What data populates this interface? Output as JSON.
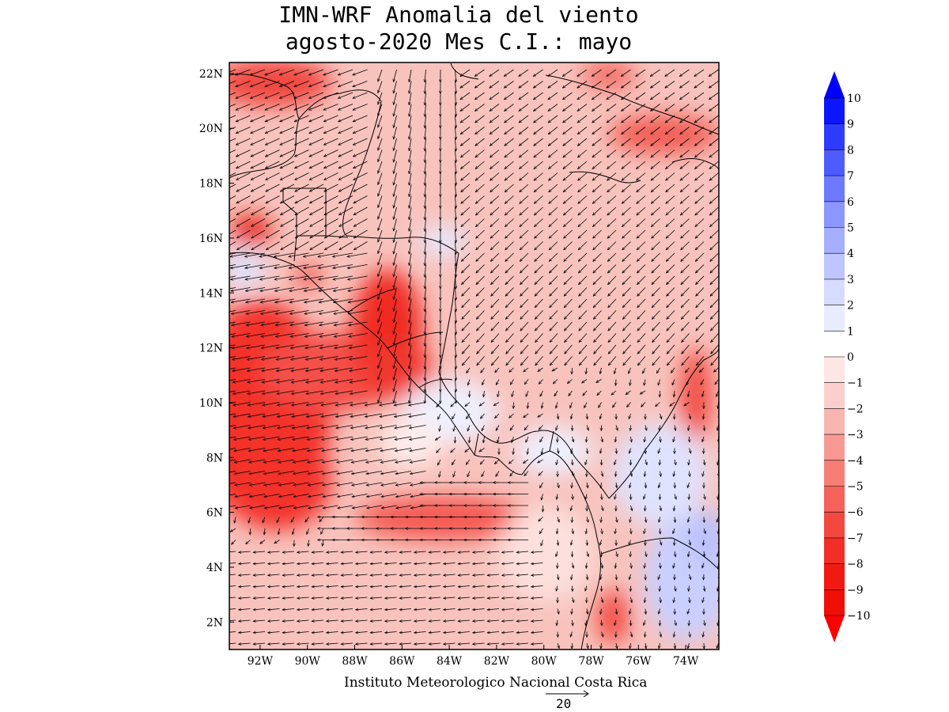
{
  "title": {
    "line1": "IMN-WRF Anomalia del viento",
    "line2": "agosto-2020 Mes C.I.: mayo"
  },
  "map": {
    "lat_labels": [
      "22N",
      "20N",
      "18N",
      "16N",
      "14N",
      "12N",
      "10N",
      "8N",
      "6N",
      "4N",
      "2N"
    ],
    "lat_values": [
      22,
      20,
      18,
      16,
      14,
      12,
      10,
      8,
      6,
      4,
      2
    ],
    "lon_labels": [
      "92W",
      "90W",
      "88W",
      "86W",
      "84W",
      "82W",
      "80W",
      "78W",
      "76W",
      "74W"
    ],
    "lon_values": [
      -92,
      -90,
      -88,
      -86,
      -84,
      -82,
      -80,
      -78,
      -76,
      -74
    ],
    "lon_range": [
      -93.3,
      -72.6
    ],
    "lat_range": [
      1.0,
      22.4
    ],
    "land_color": "#f4d4d4",
    "sea_color": "#f7c9c4"
  },
  "colorbar": {
    "labels": [
      "10",
      "9",
      "8",
      "7",
      "6",
      "5",
      "4",
      "3",
      "2",
      "1",
      "0",
      "-1",
      "-2",
      "-3",
      "-4",
      "-5",
      "-6",
      "-7",
      "-8",
      "-9",
      "-10"
    ],
    "colors": [
      "#0b16ff",
      "#2e3cff",
      "#4e5cff",
      "#6d79ff",
      "#8c96ff",
      "#a6aeff",
      "#bfc5ff",
      "#d6dbff",
      "#e9ecff",
      "#ffffff",
      "#fde6e4",
      "#fbd0cc",
      "#f9b5b0",
      "#f89a93",
      "#f77e76",
      "#f5625a",
      "#f3483f",
      "#f22f26",
      "#f11a12",
      "#ef0f07"
    ],
    "top_arrow_color": "#0000ff",
    "bottom_arrow_color": "#ff0000"
  },
  "credit": "Instituto Meteorologico Nacional Costa Rica",
  "reference_vector": "20"
}
